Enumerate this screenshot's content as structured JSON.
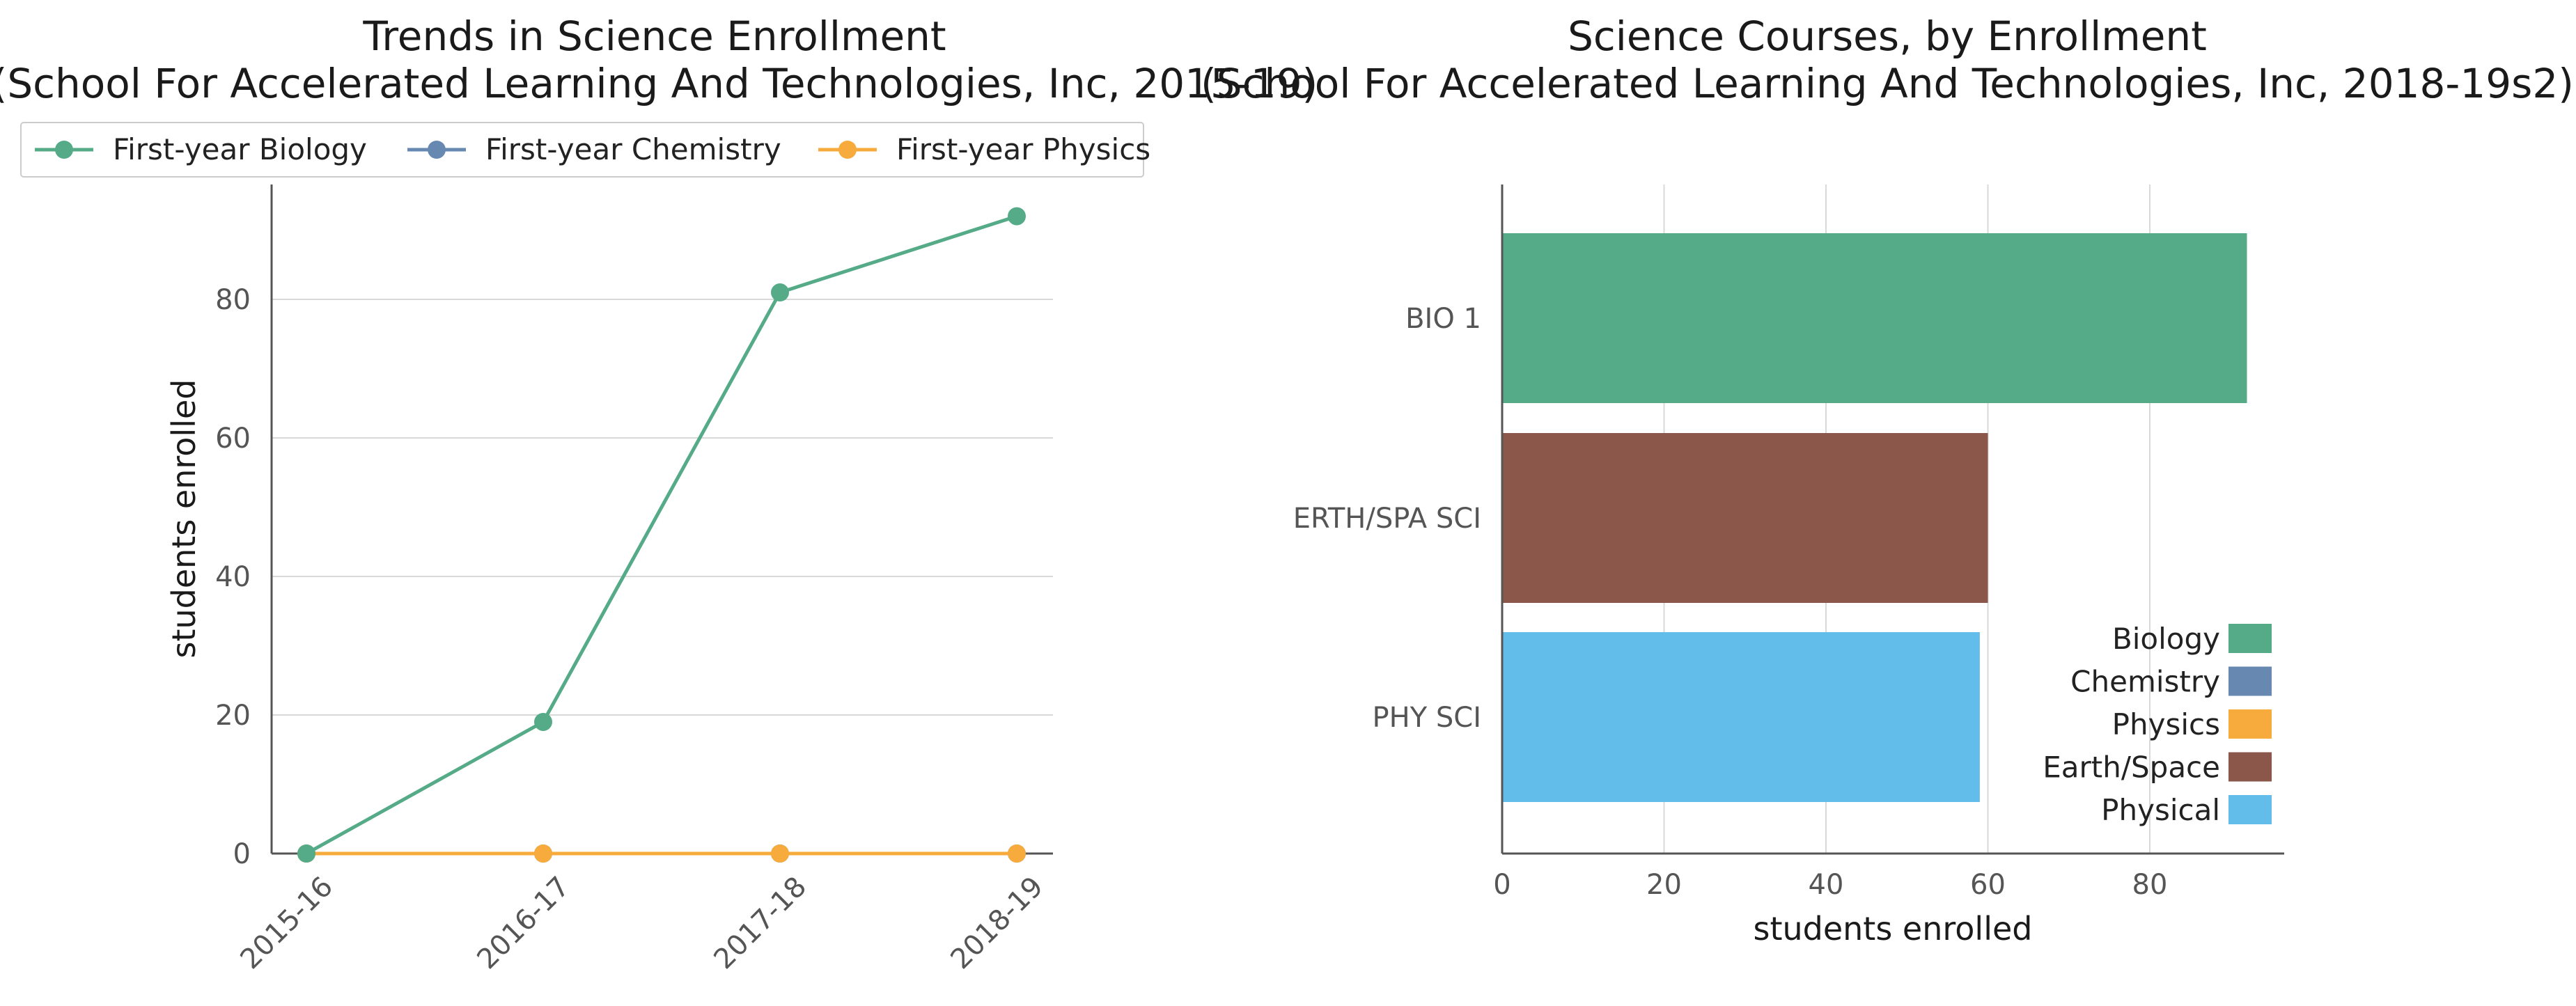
{
  "colors": {
    "biology": "#55ab87",
    "chemistry": "#6688b1",
    "physics": "#f6ab3c",
    "earth_space": "#8b574a",
    "physical": "#63bdeb"
  },
  "chart_data": [
    {
      "type": "line",
      "title_line1": "Trends in Science Enrollment",
      "title_line2": "(School For Accelerated Learning And Technologies, Inc, 2015-19)",
      "xlabel": "",
      "ylabel": "students enrolled",
      "categories": [
        "2015-16",
        "2016-17",
        "2017-18",
        "2018-19"
      ],
      "ylim": [
        0,
        92
      ],
      "yticks": [
        "0",
        "20",
        "40",
        "60",
        "80"
      ],
      "ytick_values": [
        0,
        20,
        40,
        60,
        80
      ],
      "grid": "horizontal",
      "legend_placement": "top-left",
      "series": [
        {
          "name": "First-year Biology",
          "values": [
            0,
            19,
            81,
            92
          ],
          "color_key": "biology"
        },
        {
          "name": "First-year Chemistry",
          "values": [
            0,
            0,
            0,
            0
          ],
          "color_key": "chemistry"
        },
        {
          "name": "First-year Physics",
          "values": [
            0,
            0,
            0,
            0
          ],
          "color_key": "physics"
        }
      ]
    },
    {
      "type": "bar",
      "orientation": "horizontal",
      "title_line1": "Science Courses, by Enrollment",
      "title_line2": "(School For Accelerated Learning And Technologies, Inc, 2018-19s2)",
      "xlabel": "students enrolled",
      "ylabel": "",
      "categories": [
        "BIO 1",
        "ERTH/SPA SCI",
        "PHY SCI"
      ],
      "values": [
        92,
        60,
        59
      ],
      "bar_color_keys": [
        "biology",
        "earth_space",
        "physical"
      ],
      "xlim": [
        0,
        97
      ],
      "xticks": [
        "0",
        "20",
        "40",
        "60",
        "80"
      ],
      "xtick_values": [
        0,
        20,
        40,
        60,
        80
      ],
      "grid": "vertical",
      "legend_placement": "lower-right",
      "legend": [
        {
          "name": "Biology",
          "color_key": "biology"
        },
        {
          "name": "Chemistry",
          "color_key": "chemistry"
        },
        {
          "name": "Physics",
          "color_key": "physics"
        },
        {
          "name": "Earth/Space",
          "color_key": "earth_space"
        },
        {
          "name": "Physical",
          "color_key": "physical"
        }
      ]
    }
  ]
}
